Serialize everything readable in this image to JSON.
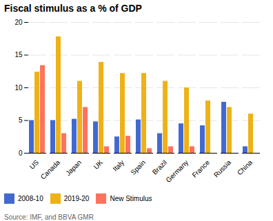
{
  "chart_data": {
    "type": "bar",
    "title": "Fiscal stimulus as a % of GDP",
    "caption": "Source: IMF, and BBVA GMR",
    "categories": [
      "US",
      "Canada",
      "Japan",
      "UK",
      "Italy",
      "Spain",
      "Brazil",
      "Germany",
      "France",
      "Russia",
      "China"
    ],
    "series": [
      {
        "name": "2008-10",
        "values": [
          5.0,
          5.0,
          5.2,
          4.8,
          2.5,
          5.1,
          3.0,
          4.5,
          4.2,
          7.8,
          1.0
        ]
      },
      {
        "name": "2019-20",
        "values": [
          12.4,
          17.8,
          11.0,
          13.9,
          12.2,
          12.2,
          11.0,
          10.0,
          8.0,
          7.0,
          6.0
        ]
      },
      {
        "name": "New Stimulus",
        "values": [
          13.4,
          3.0,
          7.0,
          1.0,
          2.6,
          0.7,
          1.0,
          1.0,
          0.0,
          0.0,
          0.0
        ]
      }
    ],
    "ylim": [
      0,
      20
    ],
    "yticks": [
      0,
      5,
      10,
      15,
      20
    ],
    "grid": true,
    "legend": "bottom"
  }
}
